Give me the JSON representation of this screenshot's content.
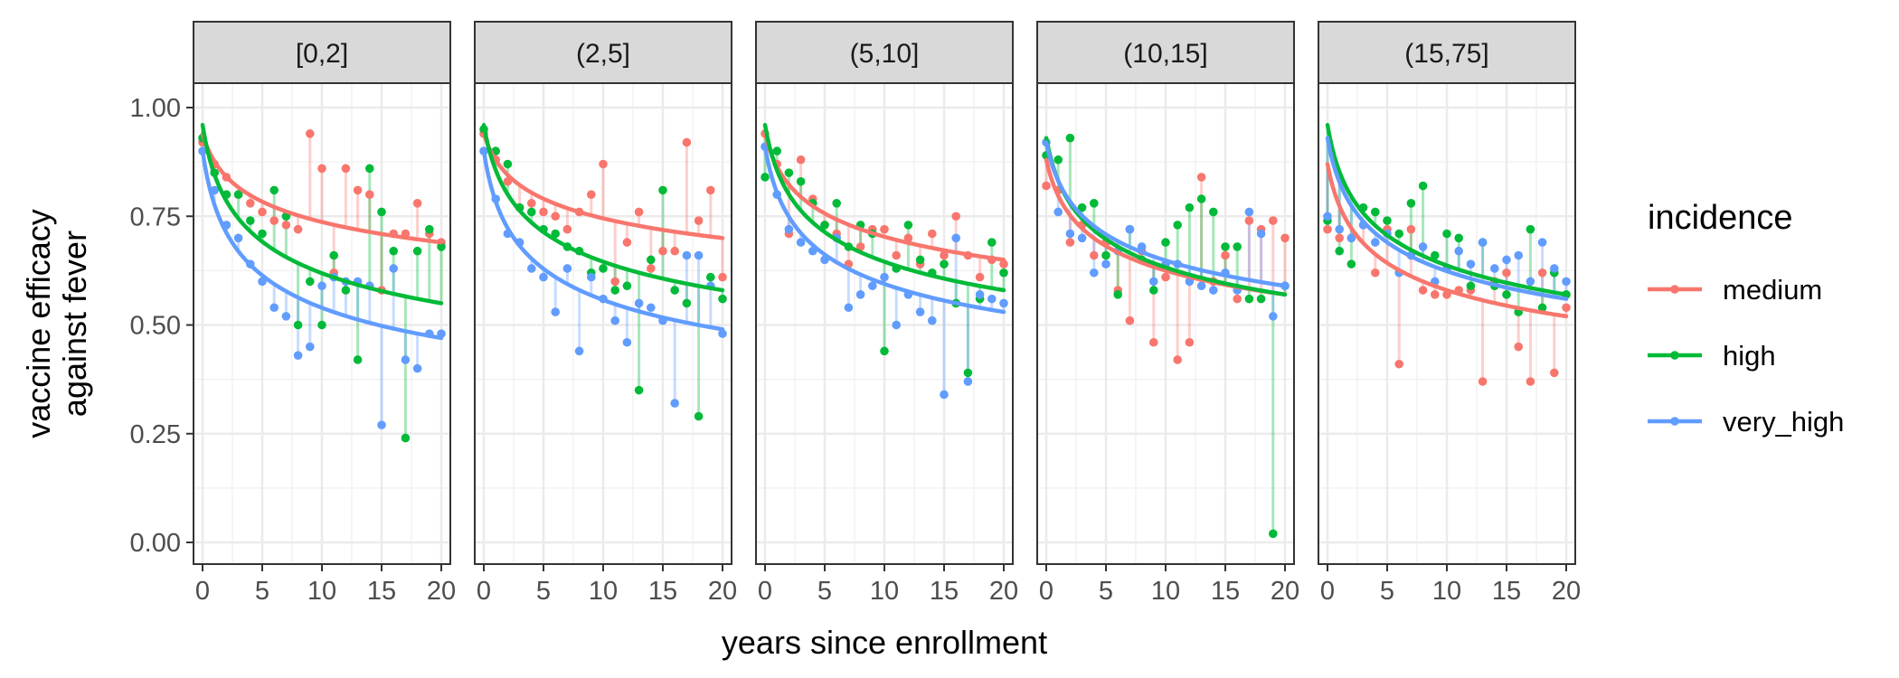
{
  "chart_data": {
    "type": "line",
    "x_label": "years since enrollment",
    "y_label_lines": [
      "vaccine efficacy",
      "against fever"
    ],
    "x_range": [
      0,
      20
    ],
    "y_range": [
      0,
      1
    ],
    "x_ticks": [
      "0",
      "5",
      "10",
      "15",
      "20"
    ],
    "y_ticks": [
      "0.00",
      "0.25",
      "0.50",
      "0.75",
      "1.00"
    ],
    "x_tick_values": [
      0,
      5,
      10,
      15,
      20
    ],
    "y_tick_values": [
      0,
      0.25,
      0.5,
      0.75,
      1.0
    ],
    "grid": true,
    "legend": {
      "title": "incidence",
      "placement": "right",
      "entries": [
        {
          "key": "medium",
          "label": "medium",
          "color": "#F8766D"
        },
        {
          "key": "high",
          "label": "high",
          "color": "#00BA38"
        },
        {
          "key": "very_high",
          "label": "very_high",
          "color": "#619CFF"
        }
      ]
    },
    "point_x": [
      0,
      1,
      2,
      3,
      4,
      5,
      6,
      7,
      8,
      9,
      10,
      11,
      12,
      13,
      14,
      15,
      16,
      17,
      18,
      19,
      20
    ],
    "panels": [
      {
        "label": "[0,2]",
        "series": [
          {
            "key": "medium",
            "fit": [
              0.94,
              0.69
            ],
            "points": [
              0.92,
              0.87,
              0.84,
              0.8,
              0.78,
              0.76,
              0.74,
              0.73,
              0.72,
              0.94,
              0.86,
              0.62,
              0.86,
              0.81,
              0.8,
              0.58,
              0.71,
              0.71,
              0.78,
              0.71,
              0.69
            ]
          },
          {
            "key": "high",
            "fit": [
              0.96,
              0.55
            ],
            "points": [
              0.93,
              0.85,
              0.8,
              0.8,
              0.74,
              0.71,
              0.81,
              0.75,
              0.5,
              0.6,
              0.5,
              0.66,
              0.58,
              0.42,
              0.86,
              0.76,
              0.67,
              0.24,
              0.67,
              0.72,
              0.68
            ]
          },
          {
            "key": "very_high",
            "fit": [
              0.9,
              0.47
            ],
            "points": [
              0.9,
              0.81,
              0.73,
              0.7,
              0.64,
              0.6,
              0.54,
              0.52,
              0.43,
              0.45,
              0.59,
              0.61,
              0.6,
              0.6,
              0.59,
              0.27,
              0.63,
              0.42,
              0.4,
              0.48,
              0.48
            ]
          }
        ]
      },
      {
        "label": "(2,5]",
        "series": [
          {
            "key": "medium",
            "fit": [
              0.94,
              0.7
            ],
            "points": [
              0.94,
              0.88,
              0.83,
              0.77,
              0.78,
              0.76,
              0.75,
              0.72,
              0.76,
              0.8,
              0.87,
              0.6,
              0.69,
              0.76,
              0.63,
              0.67,
              0.67,
              0.92,
              0.74,
              0.81,
              0.61
            ]
          },
          {
            "key": "high",
            "fit": [
              0.96,
              0.58
            ],
            "points": [
              0.95,
              0.9,
              0.87,
              0.77,
              0.76,
              0.72,
              0.71,
              0.68,
              0.67,
              0.62,
              0.63,
              0.58,
              0.59,
              0.35,
              0.65,
              0.81,
              0.58,
              0.55,
              0.29,
              0.61,
              0.56
            ]
          },
          {
            "key": "very_high",
            "fit": [
              0.9,
              0.49
            ],
            "points": [
              0.9,
              0.79,
              0.71,
              0.69,
              0.63,
              0.61,
              0.53,
              0.63,
              0.44,
              0.61,
              0.56,
              0.51,
              0.46,
              0.55,
              0.54,
              0.51,
              0.32,
              0.66,
              0.66,
              0.59,
              0.48
            ]
          }
        ]
      },
      {
        "label": "(5,10]",
        "series": [
          {
            "key": "medium",
            "fit": [
              0.94,
              0.65
            ],
            "points": [
              0.94,
              0.87,
              0.71,
              0.88,
              0.79,
              0.73,
              0.71,
              0.64,
              0.68,
              0.72,
              0.72,
              0.66,
              0.7,
              0.64,
              0.71,
              0.66,
              0.75,
              0.66,
              0.61,
              0.65,
              0.64
            ]
          },
          {
            "key": "high",
            "fit": [
              0.96,
              0.58
            ],
            "points": [
              0.84,
              0.9,
              0.85,
              0.83,
              0.78,
              0.73,
              0.78,
              0.68,
              0.73,
              0.71,
              0.44,
              0.63,
              0.73,
              0.65,
              0.62,
              0.64,
              0.55,
              0.39,
              0.56,
              0.69,
              0.62
            ]
          },
          {
            "key": "very_high",
            "fit": [
              0.91,
              0.53
            ],
            "points": [
              0.91,
              0.8,
              0.72,
              0.69,
              0.67,
              0.65,
              0.7,
              0.54,
              0.57,
              0.59,
              0.61,
              0.5,
              0.57,
              0.53,
              0.51,
              0.34,
              0.7,
              0.37,
              0.57,
              0.56,
              0.55
            ]
          }
        ]
      },
      {
        "label": "(10,15]",
        "series": [
          {
            "key": "medium",
            "fit": [
              0.88,
              0.57
            ],
            "points": [
              0.82,
              0.81,
              0.69,
              0.73,
              0.66,
              0.69,
              0.58,
              0.51,
              0.67,
              0.46,
              0.61,
              0.42,
              0.46,
              0.84,
              0.6,
              0.66,
              0.56,
              0.74,
              0.72,
              0.74,
              0.7
            ]
          },
          {
            "key": "high",
            "fit": [
              0.93,
              0.57
            ],
            "points": [
              0.89,
              0.88,
              0.93,
              0.77,
              0.78,
              0.66,
              0.57,
              0.72,
              0.65,
              0.58,
              0.69,
              0.73,
              0.77,
              0.79,
              0.76,
              0.68,
              0.68,
              0.56,
              0.56,
              0.02,
              0.59
            ]
          },
          {
            "key": "very_high",
            "fit": [
              0.92,
              0.59
            ],
            "points": [
              0.92,
              0.76,
              0.71,
              0.7,
              0.62,
              0.64,
              0.67,
              0.72,
              0.68,
              0.6,
              0.64,
              0.64,
              0.6,
              0.59,
              0.58,
              0.62,
              0.58,
              0.76,
              0.71,
              0.52,
              0.59
            ]
          }
        ]
      },
      {
        "label": "(15,75]",
        "series": [
          {
            "key": "medium",
            "fit": [
              0.87,
              0.52
            ],
            "points": [
              0.72,
              0.7,
              0.7,
              0.73,
              0.62,
              0.72,
              0.41,
              0.72,
              0.58,
              0.57,
              0.57,
              0.58,
              0.58,
              0.37,
              0.6,
              0.62,
              0.45,
              0.37,
              0.62,
              0.39,
              0.54
            ]
          },
          {
            "key": "high",
            "fit": [
              0.96,
              0.57
            ],
            "points": [
              0.74,
              0.67,
              0.64,
              0.77,
              0.76,
              0.74,
              0.71,
              0.78,
              0.82,
              0.66,
              0.71,
              0.7,
              0.59,
              0.69,
              0.59,
              0.57,
              0.53,
              0.72,
              0.54,
              0.62,
              0.57
            ]
          },
          {
            "key": "very_high",
            "fit": [
              0.93,
              0.56
            ],
            "points": [
              0.75,
              0.72,
              0.7,
              0.73,
              0.69,
              0.71,
              0.62,
              0.66,
              0.68,
              0.6,
              0.63,
              0.67,
              0.64,
              0.69,
              0.63,
              0.65,
              0.66,
              0.6,
              0.69,
              0.63,
              0.6
            ]
          }
        ]
      }
    ]
  }
}
